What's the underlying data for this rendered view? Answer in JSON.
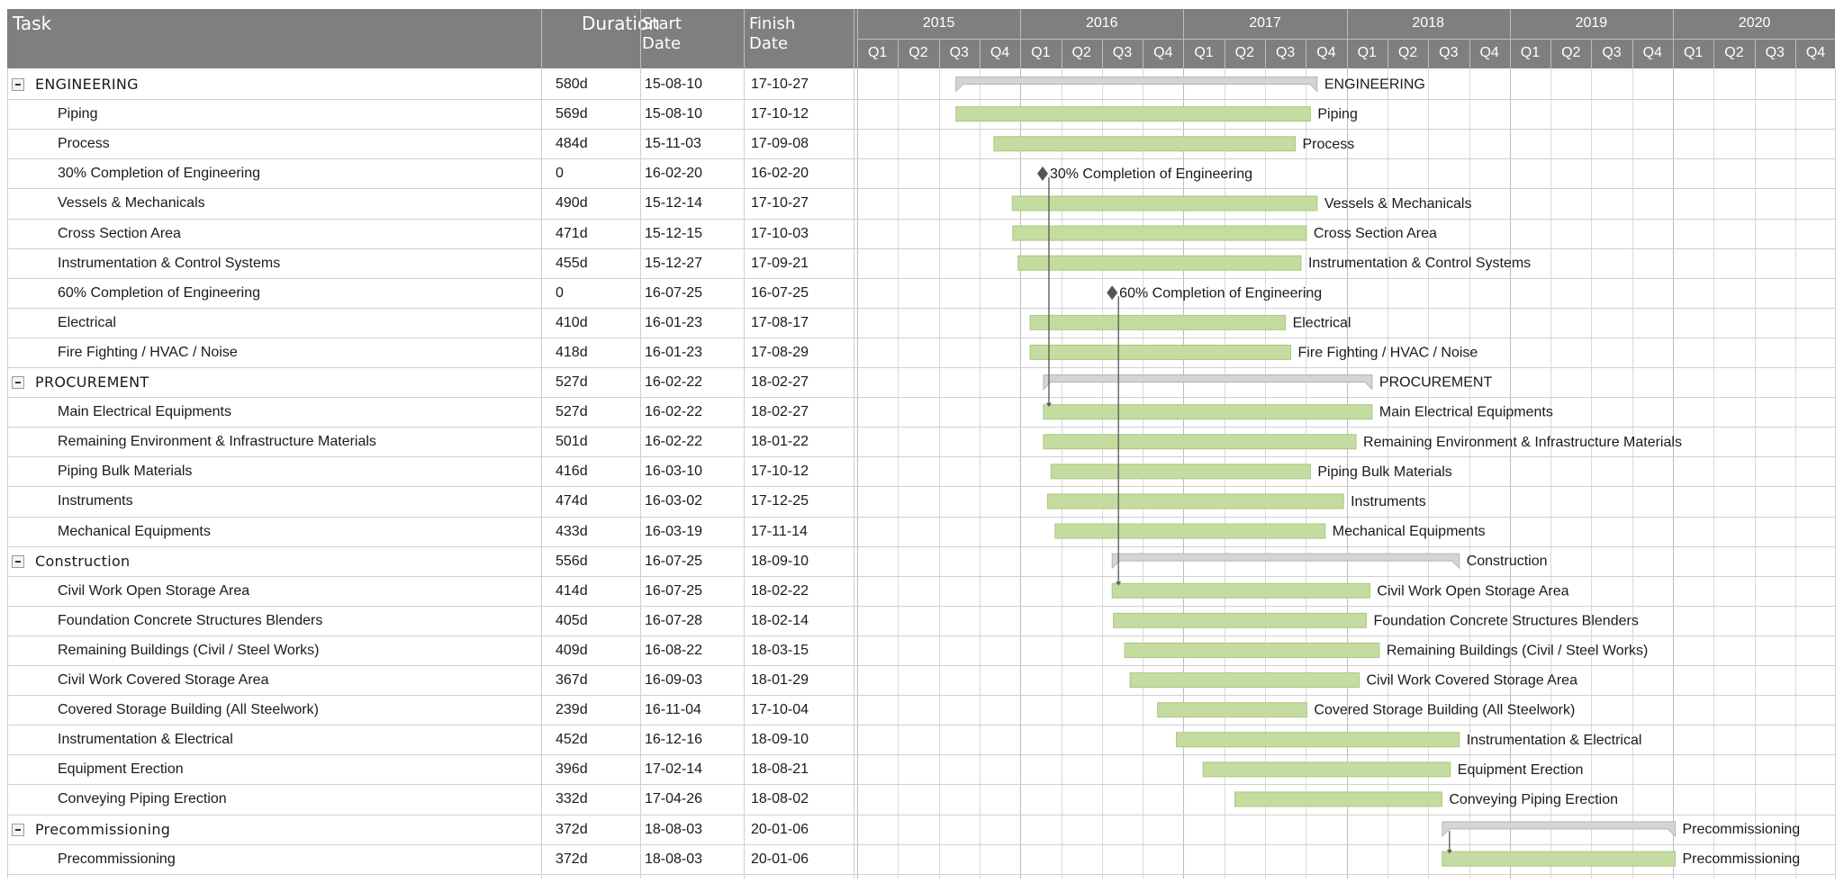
{
  "header": {
    "task_label": "Task",
    "duration_label": "Duration",
    "start_label": "Start Date",
    "finish_label": "Finish Date"
  },
  "timeline": {
    "years": [
      "2015",
      "2016",
      "2017",
      "2018",
      "2019",
      "2020"
    ],
    "quarters": [
      "Q1",
      "Q2",
      "Q3",
      "Q4"
    ]
  },
  "colors": {
    "header_bg": "#7f7f7f",
    "task_bar": "#c5dca0",
    "task_bar_border": "#a9c77f",
    "summary_bar": "#d4d4d4",
    "milestone": "#555555"
  },
  "tasks": [
    {
      "name": "ENGINEERING",
      "duration": "580d",
      "start": "15-08-10",
      "finish": "17-10-27",
      "type": "summary"
    },
    {
      "name": "Piping",
      "duration": "569d",
      "start": "15-08-10",
      "finish": "17-10-12",
      "type": "task"
    },
    {
      "name": "Process",
      "duration": "484d",
      "start": "15-11-03",
      "finish": "17-09-08",
      "type": "task"
    },
    {
      "name": "30% Completion of Engineering",
      "duration": "0",
      "start": "16-02-20",
      "finish": "16-02-20",
      "type": "milestone"
    },
    {
      "name": "Vessels & Mechanicals",
      "duration": "490d",
      "start": "15-12-14",
      "finish": "17-10-27",
      "type": "task"
    },
    {
      "name": "Cross Section Area",
      "duration": "471d",
      "start": "15-12-15",
      "finish": "17-10-03",
      "type": "task"
    },
    {
      "name": "Instrumentation & Control Systems",
      "duration": "455d",
      "start": "15-12-27",
      "finish": "17-09-21",
      "type": "task"
    },
    {
      "name": "60% Completion of Engineering",
      "duration": "0",
      "start": "16-07-25",
      "finish": "16-07-25",
      "type": "milestone"
    },
    {
      "name": "Electrical",
      "duration": "410d",
      "start": "16-01-23",
      "finish": "17-08-17",
      "type": "task"
    },
    {
      "name": "Fire Fighting / HVAC / Noise",
      "duration": "418d",
      "start": "16-01-23",
      "finish": "17-08-29",
      "type": "task"
    },
    {
      "name": "PROCUREMENT",
      "duration": "527d",
      "start": "16-02-22",
      "finish": "18-02-27",
      "type": "summary"
    },
    {
      "name": "Main Electrical Equipments",
      "duration": "527d",
      "start": "16-02-22",
      "finish": "18-02-27",
      "type": "task"
    },
    {
      "name": "Remaining Environment & Infrastructure Materials",
      "duration": "501d",
      "start": "16-02-22",
      "finish": "18-01-22",
      "type": "task"
    },
    {
      "name": "Piping Bulk Materials",
      "duration": "416d",
      "start": "16-03-10",
      "finish": "17-10-12",
      "type": "task"
    },
    {
      "name": "Instruments",
      "duration": "474d",
      "start": "16-03-02",
      "finish": "17-12-25",
      "type": "task"
    },
    {
      "name": "Mechanical Equipments",
      "duration": "433d",
      "start": "16-03-19",
      "finish": "17-11-14",
      "type": "task"
    },
    {
      "name": "Construction",
      "duration": "556d",
      "start": "16-07-25",
      "finish": "18-09-10",
      "type": "summary"
    },
    {
      "name": "Civil Work Open Storage Area",
      "duration": "414d",
      "start": "16-07-25",
      "finish": "18-02-22",
      "type": "task"
    },
    {
      "name": "Foundation Concrete Structures Blenders",
      "duration": "405d",
      "start": "16-07-28",
      "finish": "18-02-14",
      "type": "task"
    },
    {
      "name": "Remaining Buildings (Civil / Steel Works)",
      "duration": "409d",
      "start": "16-08-22",
      "finish": "18-03-15",
      "type": "task"
    },
    {
      "name": "Civil Work Covered Storage Area",
      "duration": "367d",
      "start": "16-09-03",
      "finish": "18-01-29",
      "type": "task"
    },
    {
      "name": "Covered Storage Building (All Steelwork)",
      "duration": "239d",
      "start": "16-11-04",
      "finish": "17-10-04",
      "type": "task"
    },
    {
      "name": "Instrumentation & Electrical",
      "duration": "452d",
      "start": "16-12-16",
      "finish": "18-09-10",
      "type": "task"
    },
    {
      "name": "Equipment Erection",
      "duration": "396d",
      "start": "17-02-14",
      "finish": "18-08-21",
      "type": "task"
    },
    {
      "name": "Conveying Piping Erection",
      "duration": "332d",
      "start": "17-04-26",
      "finish": "18-08-02",
      "type": "task"
    },
    {
      "name": "Precommissioning",
      "duration": "372d",
      "start": "18-08-03",
      "finish": "20-01-06",
      "type": "summary"
    },
    {
      "name": "Precommissioning",
      "duration": "372d",
      "start": "18-08-03",
      "finish": "20-01-06",
      "type": "task"
    }
  ]
}
